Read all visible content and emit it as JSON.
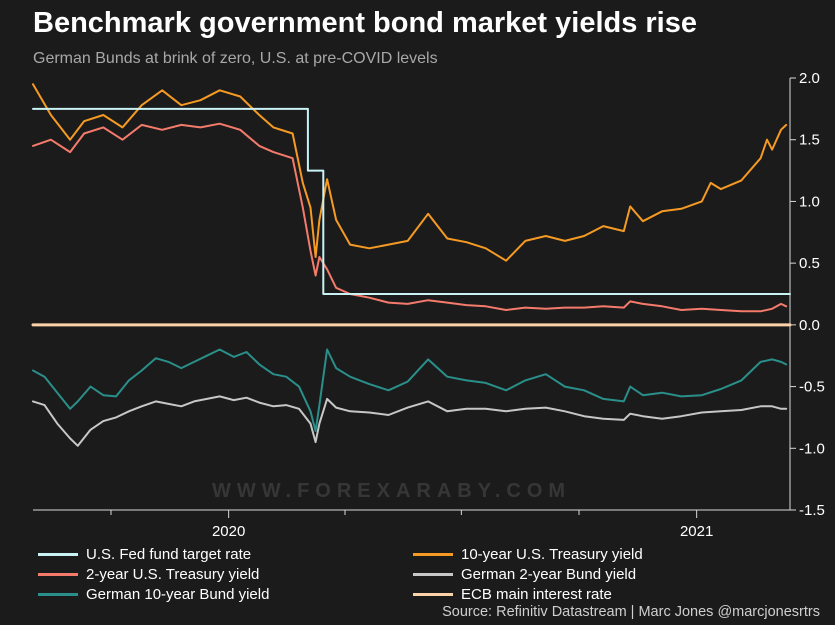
{
  "title": "Benchmark government bond market yields rise",
  "subtitle": "German Bunds at brink of zero, U.S. at pre-COVID levels",
  "source": "Source: Refinitiv Datastream | Marc Jones @marcjonesrtrs",
  "watermark": "WWW.FOREXARABY.COM",
  "chart_data": {
    "type": "line",
    "y_axis_position": "right",
    "ylim": [
      -1.5,
      2.0
    ],
    "y_ticks": [
      "2.0",
      "1.5",
      "1.0",
      "0.5",
      "0.0",
      "-0.5",
      "-1.0",
      "-1.5"
    ],
    "x_range": [
      "2019-08-01",
      "2021-03-15"
    ],
    "x_tick_labels": [
      {
        "label": "2020",
        "date": "2020-01-01"
      },
      {
        "label": "2021",
        "date": "2021-01-01"
      }
    ],
    "x_minor_ticks": [
      "2019-10-01",
      "2020-04-01",
      "2020-07-01",
      "2020-10-01",
      "2021-04-01"
    ],
    "zero_line": true,
    "background": "#1b1b1b",
    "series": [
      {
        "name": "U.S. Fed fund target rate",
        "color": "#c9f2f5",
        "step": true,
        "points": [
          [
            "2019-08-01",
            1.75
          ],
          [
            "2020-03-03",
            1.75
          ],
          [
            "2020-03-03",
            1.25
          ],
          [
            "2020-03-15",
            1.25
          ],
          [
            "2020-03-15",
            0.25
          ],
          [
            "2021-03-15",
            0.25
          ]
        ]
      },
      {
        "name": "2-year U.S. Treasury yield",
        "color": "#f47b6b",
        "points": [
          [
            "2019-08-01",
            1.45
          ],
          [
            "2019-08-15",
            1.5
          ],
          [
            "2019-08-30",
            1.4
          ],
          [
            "2019-09-10",
            1.55
          ],
          [
            "2019-09-25",
            1.6
          ],
          [
            "2019-10-10",
            1.5
          ],
          [
            "2019-10-25",
            1.62
          ],
          [
            "2019-11-10",
            1.58
          ],
          [
            "2019-11-25",
            1.62
          ],
          [
            "2019-12-10",
            1.6
          ],
          [
            "2019-12-25",
            1.63
          ],
          [
            "2020-01-10",
            1.58
          ],
          [
            "2020-01-25",
            1.45
          ],
          [
            "2020-02-05",
            1.4
          ],
          [
            "2020-02-20",
            1.35
          ],
          [
            "2020-02-28",
            0.95
          ],
          [
            "2020-03-05",
            0.6
          ],
          [
            "2020-03-09",
            0.4
          ],
          [
            "2020-03-12",
            0.55
          ],
          [
            "2020-03-18",
            0.45
          ],
          [
            "2020-03-25",
            0.3
          ],
          [
            "2020-04-05",
            0.25
          ],
          [
            "2020-04-20",
            0.22
          ],
          [
            "2020-05-05",
            0.18
          ],
          [
            "2020-05-20",
            0.17
          ],
          [
            "2020-06-05",
            0.2
          ],
          [
            "2020-06-20",
            0.18
          ],
          [
            "2020-07-05",
            0.16
          ],
          [
            "2020-07-20",
            0.15
          ],
          [
            "2020-08-05",
            0.12
          ],
          [
            "2020-08-20",
            0.14
          ],
          [
            "2020-09-05",
            0.13
          ],
          [
            "2020-09-20",
            0.14
          ],
          [
            "2020-10-05",
            0.14
          ],
          [
            "2020-10-20",
            0.15
          ],
          [
            "2020-11-05",
            0.14
          ],
          [
            "2020-11-10",
            0.19
          ],
          [
            "2020-11-20",
            0.17
          ],
          [
            "2020-12-05",
            0.15
          ],
          [
            "2020-12-20",
            0.12
          ],
          [
            "2021-01-05",
            0.13
          ],
          [
            "2021-01-20",
            0.12
          ],
          [
            "2021-02-05",
            0.11
          ],
          [
            "2021-02-20",
            0.11
          ],
          [
            "2021-03-01",
            0.13
          ],
          [
            "2021-03-08",
            0.17
          ],
          [
            "2021-03-12",
            0.15
          ]
        ]
      },
      {
        "name": "German 10-year Bund yield",
        "color": "#2a8f8a",
        "points": [
          [
            "2019-08-01",
            -0.37
          ],
          [
            "2019-08-10",
            -0.42
          ],
          [
            "2019-08-20",
            -0.55
          ],
          [
            "2019-08-30",
            -0.68
          ],
          [
            "2019-09-05",
            -0.62
          ],
          [
            "2019-09-15",
            -0.5
          ],
          [
            "2019-09-25",
            -0.57
          ],
          [
            "2019-10-05",
            -0.58
          ],
          [
            "2019-10-15",
            -0.45
          ],
          [
            "2019-10-25",
            -0.37
          ],
          [
            "2019-11-05",
            -0.27
          ],
          [
            "2019-11-15",
            -0.3
          ],
          [
            "2019-11-25",
            -0.35
          ],
          [
            "2019-12-05",
            -0.3
          ],
          [
            "2019-12-15",
            -0.25
          ],
          [
            "2019-12-25",
            -0.2
          ],
          [
            "2020-01-05",
            -0.26
          ],
          [
            "2020-01-15",
            -0.22
          ],
          [
            "2020-01-25",
            -0.32
          ],
          [
            "2020-02-05",
            -0.4
          ],
          [
            "2020-02-15",
            -0.42
          ],
          [
            "2020-02-25",
            -0.5
          ],
          [
            "2020-03-05",
            -0.7
          ],
          [
            "2020-03-09",
            -0.86
          ],
          [
            "2020-03-12",
            -0.65
          ],
          [
            "2020-03-18",
            -0.2
          ],
          [
            "2020-03-25",
            -0.35
          ],
          [
            "2020-04-05",
            -0.42
          ],
          [
            "2020-04-20",
            -0.48
          ],
          [
            "2020-05-05",
            -0.53
          ],
          [
            "2020-05-20",
            -0.46
          ],
          [
            "2020-06-05",
            -0.28
          ],
          [
            "2020-06-20",
            -0.42
          ],
          [
            "2020-07-05",
            -0.45
          ],
          [
            "2020-07-20",
            -0.47
          ],
          [
            "2020-08-05",
            -0.53
          ],
          [
            "2020-08-20",
            -0.45
          ],
          [
            "2020-09-05",
            -0.4
          ],
          [
            "2020-09-20",
            -0.5
          ],
          [
            "2020-10-05",
            -0.53
          ],
          [
            "2020-10-20",
            -0.6
          ],
          [
            "2020-11-05",
            -0.62
          ],
          [
            "2020-11-10",
            -0.5
          ],
          [
            "2020-11-20",
            -0.57
          ],
          [
            "2020-12-05",
            -0.55
          ],
          [
            "2020-12-20",
            -0.58
          ],
          [
            "2021-01-05",
            -0.57
          ],
          [
            "2021-01-20",
            -0.52
          ],
          [
            "2021-02-05",
            -0.45
          ],
          [
            "2021-02-20",
            -0.3
          ],
          [
            "2021-03-01",
            -0.28
          ],
          [
            "2021-03-08",
            -0.3
          ],
          [
            "2021-03-12",
            -0.32
          ]
        ]
      },
      {
        "name": "10-year U.S. Treasury yield",
        "color": "#f59a23",
        "points": [
          [
            "2019-08-01",
            1.95
          ],
          [
            "2019-08-15",
            1.7
          ],
          [
            "2019-08-30",
            1.5
          ],
          [
            "2019-09-10",
            1.65
          ],
          [
            "2019-09-25",
            1.7
          ],
          [
            "2019-10-10",
            1.6
          ],
          [
            "2019-10-25",
            1.78
          ],
          [
            "2019-11-10",
            1.9
          ],
          [
            "2019-11-25",
            1.78
          ],
          [
            "2019-12-10",
            1.82
          ],
          [
            "2019-12-25",
            1.9
          ],
          [
            "2020-01-10",
            1.85
          ],
          [
            "2020-01-25",
            1.7
          ],
          [
            "2020-02-05",
            1.6
          ],
          [
            "2020-02-20",
            1.55
          ],
          [
            "2020-02-28",
            1.15
          ],
          [
            "2020-03-05",
            0.95
          ],
          [
            "2020-03-09",
            0.55
          ],
          [
            "2020-03-12",
            0.85
          ],
          [
            "2020-03-18",
            1.18
          ],
          [
            "2020-03-25",
            0.85
          ],
          [
            "2020-04-05",
            0.65
          ],
          [
            "2020-04-20",
            0.62
          ],
          [
            "2020-05-05",
            0.65
          ],
          [
            "2020-05-20",
            0.68
          ],
          [
            "2020-06-05",
            0.9
          ],
          [
            "2020-06-20",
            0.7
          ],
          [
            "2020-07-05",
            0.67
          ],
          [
            "2020-07-20",
            0.62
          ],
          [
            "2020-08-05",
            0.52
          ],
          [
            "2020-08-20",
            0.68
          ],
          [
            "2020-09-05",
            0.72
          ],
          [
            "2020-09-20",
            0.68
          ],
          [
            "2020-10-05",
            0.72
          ],
          [
            "2020-10-20",
            0.8
          ],
          [
            "2020-11-05",
            0.76
          ],
          [
            "2020-11-10",
            0.96
          ],
          [
            "2020-11-20",
            0.84
          ],
          [
            "2020-12-05",
            0.92
          ],
          [
            "2020-12-20",
            0.94
          ],
          [
            "2021-01-05",
            1.0
          ],
          [
            "2021-01-12",
            1.15
          ],
          [
            "2021-01-20",
            1.1
          ],
          [
            "2021-02-05",
            1.17
          ],
          [
            "2021-02-20",
            1.35
          ],
          [
            "2021-02-25",
            1.5
          ],
          [
            "2021-03-01",
            1.42
          ],
          [
            "2021-03-08",
            1.58
          ],
          [
            "2021-03-12",
            1.62
          ]
        ]
      },
      {
        "name": "German 2-year Bund yield",
        "color": "#c7c7c7",
        "points": [
          [
            "2019-08-01",
            -0.62
          ],
          [
            "2019-08-10",
            -0.65
          ],
          [
            "2019-08-20",
            -0.8
          ],
          [
            "2019-08-30",
            -0.92
          ],
          [
            "2019-09-05",
            -0.98
          ],
          [
            "2019-09-15",
            -0.85
          ],
          [
            "2019-09-25",
            -0.78
          ],
          [
            "2019-10-05",
            -0.75
          ],
          [
            "2019-10-15",
            -0.7
          ],
          [
            "2019-10-25",
            -0.66
          ],
          [
            "2019-11-05",
            -0.62
          ],
          [
            "2019-11-15",
            -0.64
          ],
          [
            "2019-11-25",
            -0.66
          ],
          [
            "2019-12-05",
            -0.62
          ],
          [
            "2019-12-15",
            -0.6
          ],
          [
            "2019-12-25",
            -0.58
          ],
          [
            "2020-01-05",
            -0.61
          ],
          [
            "2020-01-15",
            -0.59
          ],
          [
            "2020-01-25",
            -0.63
          ],
          [
            "2020-02-05",
            -0.66
          ],
          [
            "2020-02-15",
            -0.65
          ],
          [
            "2020-02-25",
            -0.68
          ],
          [
            "2020-03-05",
            -0.8
          ],
          [
            "2020-03-09",
            -0.95
          ],
          [
            "2020-03-12",
            -0.8
          ],
          [
            "2020-03-18",
            -0.6
          ],
          [
            "2020-03-25",
            -0.67
          ],
          [
            "2020-04-05",
            -0.7
          ],
          [
            "2020-04-20",
            -0.71
          ],
          [
            "2020-05-05",
            -0.73
          ],
          [
            "2020-05-20",
            -0.67
          ],
          [
            "2020-06-05",
            -0.62
          ],
          [
            "2020-06-20",
            -0.7
          ],
          [
            "2020-07-05",
            -0.68
          ],
          [
            "2020-07-20",
            -0.68
          ],
          [
            "2020-08-05",
            -0.7
          ],
          [
            "2020-08-20",
            -0.68
          ],
          [
            "2020-09-05",
            -0.67
          ],
          [
            "2020-09-20",
            -0.7
          ],
          [
            "2020-10-05",
            -0.74
          ],
          [
            "2020-10-20",
            -0.76
          ],
          [
            "2020-11-05",
            -0.77
          ],
          [
            "2020-11-10",
            -0.72
          ],
          [
            "2020-11-20",
            -0.74
          ],
          [
            "2020-12-05",
            -0.76
          ],
          [
            "2020-12-20",
            -0.74
          ],
          [
            "2021-01-05",
            -0.71
          ],
          [
            "2021-01-20",
            -0.7
          ],
          [
            "2021-02-05",
            -0.69
          ],
          [
            "2021-02-20",
            -0.66
          ],
          [
            "2021-03-01",
            -0.66
          ],
          [
            "2021-03-08",
            -0.68
          ],
          [
            "2021-03-12",
            -0.68
          ]
        ]
      },
      {
        "name": "ECB main interest rate",
        "color": "#fcd3a9",
        "points": [
          [
            "2019-08-01",
            0.0
          ],
          [
            "2021-03-15",
            0.0
          ]
        ]
      }
    ]
  }
}
